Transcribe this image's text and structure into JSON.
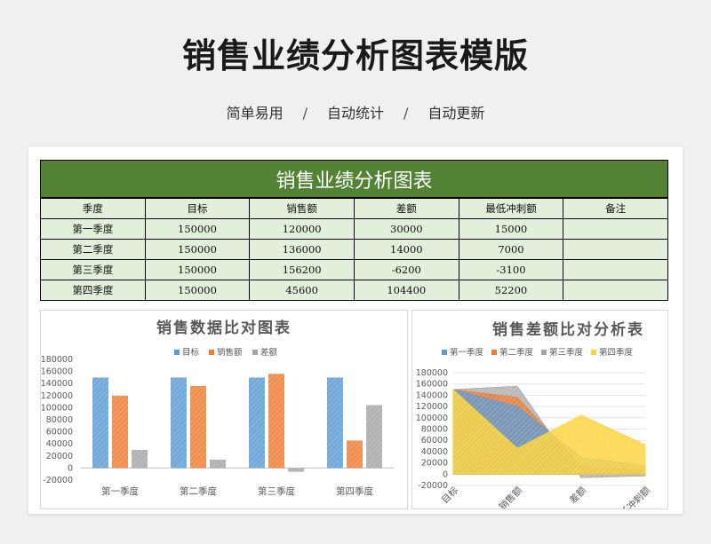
{
  "header": {
    "title": "销售业绩分析图表模版",
    "tags": [
      "简单易用",
      "自动统计",
      "自动更新"
    ],
    "separator": "/"
  },
  "sheet": {
    "title": "销售业绩分析图表",
    "columns": [
      "季度",
      "目标",
      "销售额",
      "差额",
      "最低冲刺额",
      "备注"
    ],
    "rows": [
      [
        "第一季度",
        "150000",
        "120000",
        "30000",
        "15000",
        ""
      ],
      [
        "第二季度",
        "150000",
        "136000",
        "14000",
        "7000",
        ""
      ],
      [
        "第三季度",
        "150000",
        "156200",
        "-6200",
        "-3100",
        ""
      ],
      [
        "第四季度",
        "150000",
        "45600",
        "104400",
        "52200",
        ""
      ]
    ]
  },
  "chart_data": [
    {
      "type": "bar",
      "title": "销售数据比对图表",
      "categories": [
        "第一季度",
        "第二季度",
        "第三季度",
        "第四季度"
      ],
      "series": [
        {
          "name": "目标",
          "values": [
            150000,
            150000,
            150000,
            150000
          ],
          "color": "#5b9bd5"
        },
        {
          "name": "销售额",
          "values": [
            120000,
            136000,
            156200,
            45600
          ],
          "color": "#ed7d31"
        },
        {
          "name": "差额",
          "values": [
            30000,
            14000,
            -6200,
            104400
          ],
          "color": "#a5a5a5"
        }
      ],
      "yticks": [
        "180000",
        "160000",
        "140000",
        "120000",
        "100000",
        "80000",
        "60000",
        "40000",
        "20000",
        "0",
        "-20000"
      ],
      "ylim": [
        -20000,
        180000
      ],
      "legend": "top",
      "grid": false
    },
    {
      "type": "area",
      "title": "销售差额比对分析表",
      "categories": [
        "目标",
        "销售额",
        "差额",
        "最低冲刺额"
      ],
      "series": [
        {
          "name": "第一季度",
          "values": [
            150000,
            120000,
            30000,
            15000
          ],
          "color": "#5b9bd5"
        },
        {
          "name": "第二季度",
          "values": [
            150000,
            136000,
            14000,
            7000
          ],
          "color": "#ed7d31"
        },
        {
          "name": "第三季度",
          "values": [
            150000,
            156200,
            -6200,
            -3100
          ],
          "color": "#a5a5a5"
        },
        {
          "name": "第四季度",
          "values": [
            150000,
            45600,
            104400,
            52200
          ],
          "color": "#ffd43b"
        }
      ],
      "yticks": [
        "180000",
        "160000",
        "140000",
        "120000",
        "100000",
        "80000",
        "60000",
        "40000",
        "20000",
        "0",
        "-20000"
      ],
      "ylim": [
        -20000,
        180000
      ],
      "legend": "top",
      "grid": true
    }
  ]
}
